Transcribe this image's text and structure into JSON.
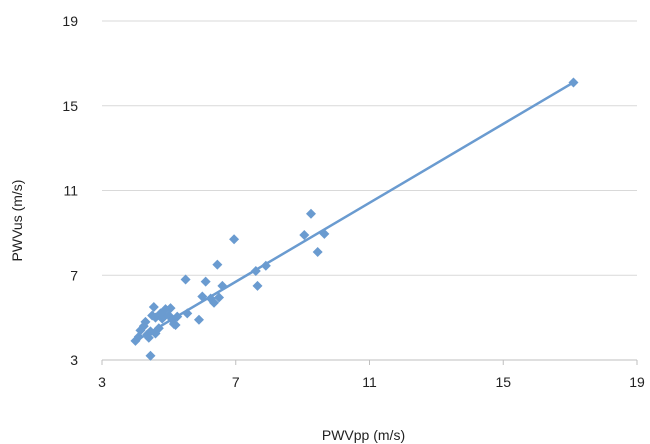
{
  "chart_data": {
    "type": "scatter",
    "title": "",
    "xlabel": "PWVpp (m/s)",
    "ylabel": "PWVus (m/s)",
    "xlim": [
      3,
      19
    ],
    "ylim": [
      3,
      19
    ],
    "xticks": [
      3,
      7,
      11,
      15,
      19
    ],
    "yticks": [
      3,
      7,
      11,
      15,
      19
    ],
    "grid": {
      "horizontal": true,
      "vertical": false
    },
    "legend": "none",
    "colors": {
      "marker": "#6a9bd0",
      "trendline": "#6a9bd0",
      "grid": "#d9d9d9",
      "axis": "#bfbfbf"
    },
    "marker": "diamond",
    "trendline": {
      "type": "linear",
      "x": [
        4.0,
        17.1
      ],
      "y": [
        3.9,
        16.1
      ]
    },
    "series": [
      {
        "points": [
          [
            4.0,
            3.9
          ],
          [
            4.1,
            4.1
          ],
          [
            4.15,
            4.4
          ],
          [
            4.25,
            4.6
          ],
          [
            4.3,
            4.8
          ],
          [
            4.35,
            4.2
          ],
          [
            4.4,
            4.05
          ],
          [
            4.45,
            4.35
          ],
          [
            4.5,
            5.1
          ],
          [
            4.55,
            5.5
          ],
          [
            4.6,
            4.25
          ],
          [
            4.6,
            5.0
          ],
          [
            4.7,
            4.5
          ],
          [
            4.75,
            5.2
          ],
          [
            4.8,
            4.95
          ],
          [
            4.85,
            5.05
          ],
          [
            4.9,
            5.4
          ],
          [
            5.0,
            5.1
          ],
          [
            5.05,
            5.45
          ],
          [
            5.1,
            4.9
          ],
          [
            5.15,
            4.7
          ],
          [
            5.2,
            4.65
          ],
          [
            5.25,
            5.05
          ],
          [
            4.45,
            3.2
          ],
          [
            5.5,
            6.8
          ],
          [
            5.55,
            5.2
          ],
          [
            5.9,
            4.9
          ],
          [
            6.0,
            6.0
          ],
          [
            6.1,
            6.7
          ],
          [
            6.25,
            5.9
          ],
          [
            6.35,
            5.7
          ],
          [
            6.45,
            7.5
          ],
          [
            6.5,
            5.95
          ],
          [
            6.6,
            6.5
          ],
          [
            6.95,
            8.7
          ],
          [
            7.6,
            7.2
          ],
          [
            7.65,
            6.5
          ],
          [
            7.9,
            7.45
          ],
          [
            9.05,
            8.9
          ],
          [
            9.25,
            9.9
          ],
          [
            9.45,
            8.1
          ],
          [
            9.65,
            8.95
          ],
          [
            17.1,
            16.1
          ]
        ]
      }
    ]
  }
}
